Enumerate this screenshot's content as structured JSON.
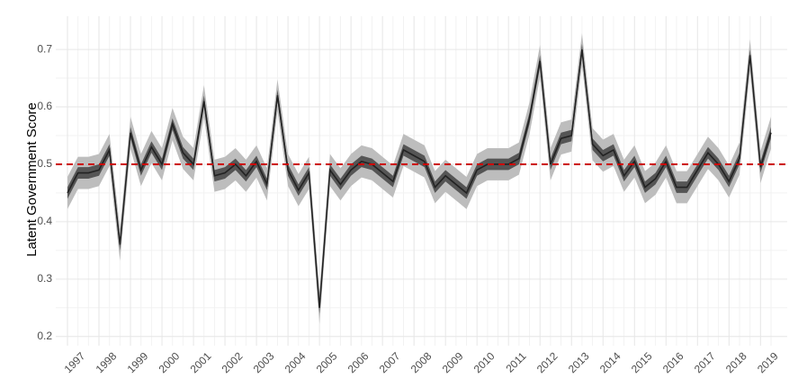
{
  "chart_data": {
    "type": "line",
    "ylabel": "Latent Government Score",
    "categories": [
      "1997",
      null,
      null,
      "1998",
      null,
      null,
      "1999",
      null,
      null,
      "2000",
      null,
      null,
      "2001",
      null,
      null,
      "2002",
      null,
      null,
      "2003",
      null,
      null,
      "2004",
      null,
      null,
      "2005",
      null,
      null,
      "2006",
      null,
      null,
      "2007",
      null,
      null,
      "2008",
      null,
      null,
      "2009",
      null,
      null,
      "2010",
      null,
      null,
      "2011",
      null,
      null,
      "2012",
      null,
      null,
      "2013",
      null,
      null,
      "2014",
      null,
      null,
      "2015",
      null,
      null,
      "2016",
      null,
      null,
      "2017",
      null,
      null,
      "2018",
      null,
      null,
      "2019",
      null
    ],
    "values": [
      0.45,
      0.485,
      0.485,
      0.49,
      0.525,
      0.36,
      0.555,
      0.49,
      0.53,
      0.5,
      0.57,
      0.52,
      0.5,
      0.61,
      0.48,
      0.485,
      0.5,
      0.48,
      0.505,
      0.465,
      0.62,
      0.49,
      0.455,
      0.485,
      0.25,
      0.49,
      0.465,
      0.49,
      0.505,
      0.5,
      0.485,
      0.47,
      0.525,
      0.515,
      0.505,
      0.46,
      0.48,
      0.465,
      0.45,
      0.49,
      0.5,
      0.5,
      0.5,
      0.51,
      0.58,
      0.68,
      0.5,
      0.545,
      0.55,
      0.7,
      0.535,
      0.515,
      0.525,
      0.48,
      0.505,
      0.46,
      0.475,
      0.505,
      0.46,
      0.46,
      0.49,
      0.52,
      0.5,
      0.47,
      0.51,
      0.69,
      0.495,
      0.555
    ],
    "color": "#222222",
    "band_inner": 0.01,
    "band_outer": 0.028,
    "band_colors": [
      "#555555",
      "#bdbdbd"
    ],
    "hline": 0.5,
    "hline_color": "#cc0000",
    "ylim": [
      0.184,
      0.758
    ],
    "yticks": [
      0.2,
      0.3,
      0.4,
      0.5,
      0.6,
      0.7
    ],
    "grid": true
  }
}
